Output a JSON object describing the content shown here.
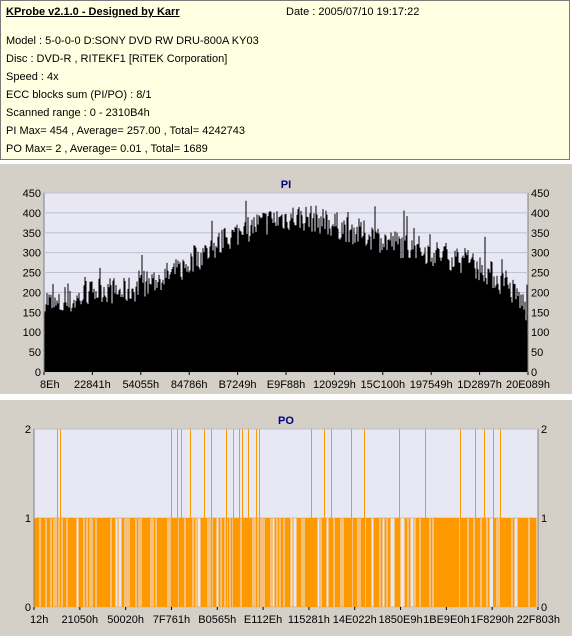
{
  "header": {
    "title": "KProbe v2.1.0 - Designed by Karr",
    "date": "Date : 2005/07/10 19:17:22",
    "lines": [
      "Model : 5-0-0-0 D:SONY    DVD RW DRU-800A  KY03",
      "Disc : DVD-R  , RITEKF1 [RiTEK Corporation]",
      "Speed : 4x",
      "ECC blocks sum (PI/PO) : 8/1",
      "Scanned range : 0 - 2310B4h",
      "PI Max= 454 , Average= 257.00 , Total= 4242743",
      "PO Max= 2 , Average= 0.01 , Total= 1689"
    ]
  },
  "colors": {
    "pi": "#000000",
    "po": "#ff9900",
    "plot_bg": "#e8e8f4",
    "grid": "#c0c0d0",
    "title": "#000080"
  },
  "chart_data": [
    {
      "type": "bar",
      "title": "PI",
      "xlabel": "",
      "ylabel": "",
      "ylim": [
        0,
        450
      ],
      "yticks": [
        0,
        50,
        100,
        150,
        200,
        250,
        300,
        350,
        400,
        450
      ],
      "xtick_labels": [
        "8Eh",
        "22841h",
        "54055h",
        "84786h",
        "B7249h",
        "E9F88h",
        "120929h",
        "15C100h",
        "197549h",
        "1D2897h",
        "20E089h"
      ],
      "grid": true,
      "profile": {
        "x": [
          0.0,
          0.02,
          0.05,
          0.08,
          0.12,
          0.16,
          0.2,
          0.24,
          0.28,
          0.32,
          0.36,
          0.4,
          0.44,
          0.48,
          0.52,
          0.56,
          0.6,
          0.64,
          0.68,
          0.72,
          0.76,
          0.8,
          0.84,
          0.88,
          0.92,
          0.95,
          0.98,
          1.0
        ],
        "y": [
          190,
          165,
          172,
          190,
          210,
          200,
          215,
          235,
          255,
          290,
          320,
          350,
          370,
          385,
          390,
          385,
          370,
          355,
          340,
          325,
          315,
          300,
          290,
          275,
          250,
          220,
          190,
          150
        ]
      },
      "max": 454,
      "average": 257.0
    },
    {
      "type": "bar",
      "title": "PO",
      "xlabel": "",
      "ylabel": "",
      "ylim": [
        0,
        2
      ],
      "yticks": [
        0,
        1,
        2
      ],
      "xtick_labels": [
        "12h",
        "21050h",
        "50020h",
        "7F761h",
        "B0565h",
        "E112Eh",
        "115281h",
        "14E022h",
        "1850E9h",
        "1BE9E0h",
        "1F8290h",
        "22F803h"
      ],
      "grid": true,
      "spikes_value_2": [
        0.045,
        0.052,
        0.272,
        0.283,
        0.291,
        0.31,
        0.337,
        0.351,
        0.38,
        0.395,
        0.406,
        0.412,
        0.425,
        0.44,
        0.447,
        0.55,
        0.575,
        0.59,
        0.628,
        0.655,
        0.725,
        0.775,
        0.845,
        0.875,
        0.893,
        0.91,
        0.925
      ]
    }
  ]
}
